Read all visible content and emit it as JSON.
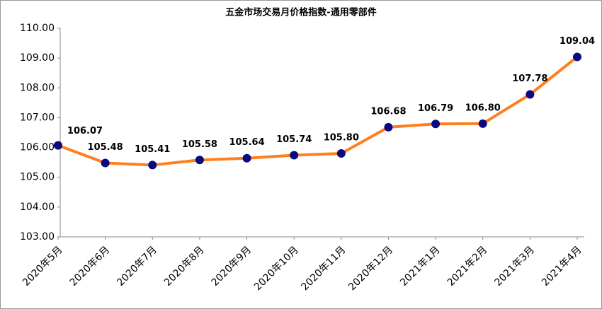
{
  "chart_data": {
    "type": "line",
    "title": "五金市场交易月价格指数-通用零部件",
    "categories": [
      "2020年5月",
      "2020年6月",
      "2020年7月",
      "2020年8月",
      "2020年9月",
      "2020年10月",
      "2020年11月",
      "2020年12月",
      "2021年1月",
      "2021年2月",
      "2021年3月",
      "2021年4月"
    ],
    "series": [
      {
        "name": "通用零部件",
        "color": "#ff7f1e",
        "marker_color": "#0a0a80",
        "values": [
          106.07,
          105.48,
          105.41,
          105.58,
          105.64,
          105.74,
          105.8,
          106.68,
          106.79,
          106.8,
          107.78,
          109.04
        ],
        "value_labels": [
          "106.07",
          "105.48",
          "105.41",
          "105.58",
          "105.64",
          "105.74",
          "105.80",
          "106.68",
          "106.79",
          "106.80",
          "107.78",
          "109.04"
        ]
      }
    ],
    "ylim": [
      103,
      110
    ],
    "yticks": [
      {
        "value": 103,
        "label": "103.00"
      },
      {
        "value": 104,
        "label": "104.00"
      },
      {
        "value": 105,
        "label": "105.00"
      },
      {
        "value": 106,
        "label": "106.00"
      },
      {
        "value": 107,
        "label": "107.00"
      },
      {
        "value": 108,
        "label": "108.00"
      },
      {
        "value": 109,
        "label": "109.00"
      },
      {
        "value": 110,
        "label": "110.00"
      }
    ],
    "grid": false
  }
}
